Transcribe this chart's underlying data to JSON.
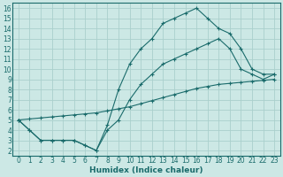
{
  "xlabel": "Humidex (Indice chaleur)",
  "bg_color": "#cce8e5",
  "grid_color": "#aad0cc",
  "line_color": "#1a6b6b",
  "xlim": [
    -0.5,
    23.5
  ],
  "ylim": [
    1.5,
    16.5
  ],
  "xticks": [
    0,
    1,
    2,
    3,
    4,
    5,
    6,
    7,
    8,
    9,
    10,
    11,
    12,
    13,
    14,
    15,
    16,
    17,
    18,
    19,
    20,
    21,
    22,
    23
  ],
  "yticks": [
    2,
    3,
    4,
    5,
    6,
    7,
    8,
    9,
    10,
    11,
    12,
    13,
    14,
    15,
    16
  ],
  "line1_x": [
    0,
    1,
    2,
    3,
    4,
    5,
    6,
    7,
    8,
    9,
    10,
    11,
    12,
    13,
    14,
    15,
    16,
    17,
    18,
    19,
    20,
    21,
    22,
    23
  ],
  "line1_y": [
    5,
    4,
    3,
    3,
    3,
    3,
    2.5,
    2,
    4.5,
    8,
    10.5,
    12,
    13,
    14.5,
    15,
    15.5,
    16,
    15,
    14,
    13.5,
    12,
    10,
    9.5,
    9.5
  ],
  "line2_x": [
    0,
    1,
    2,
    3,
    4,
    5,
    6,
    7,
    8,
    9,
    10,
    11,
    12,
    13,
    14,
    15,
    16,
    17,
    18,
    19,
    20,
    21,
    22,
    23
  ],
  "line2_y": [
    5,
    5.1,
    5.2,
    5.3,
    5.4,
    5.5,
    5.6,
    5.7,
    5.9,
    6.1,
    6.3,
    6.6,
    6.9,
    7.2,
    7.5,
    7.8,
    8.1,
    8.3,
    8.5,
    8.6,
    8.7,
    8.8,
    8.9,
    9.0
  ],
  "line3_x": [
    0,
    1,
    2,
    3,
    4,
    5,
    6,
    7,
    8,
    9,
    10,
    11,
    12,
    13,
    14,
    15,
    16,
    17,
    18,
    19,
    20,
    21,
    22,
    23
  ],
  "line3_y": [
    5,
    4,
    3,
    3,
    3,
    3,
    2.5,
    2,
    4,
    5,
    7,
    8.5,
    9.5,
    10.5,
    11,
    11.5,
    12,
    12.5,
    13,
    12,
    10,
    9.5,
    9,
    9.5
  ]
}
